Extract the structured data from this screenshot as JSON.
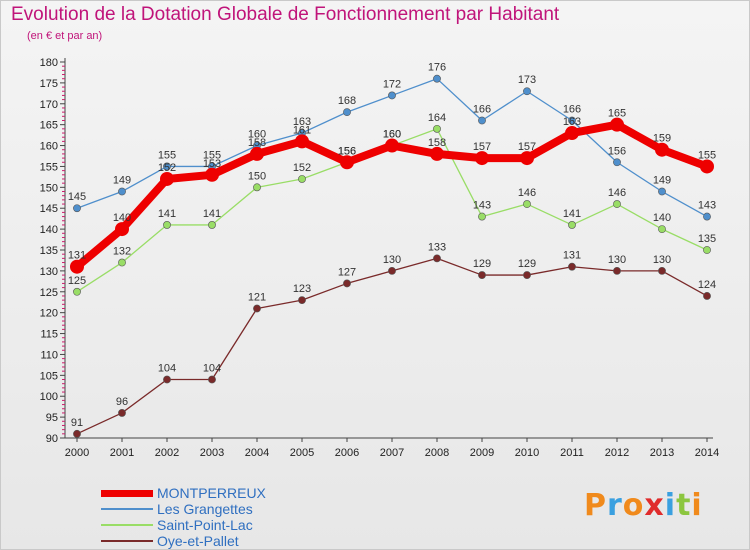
{
  "header": {
    "title": "Evolution de la Dotation Globale de Fonctionnement par Habitant",
    "subtitle": "(en € et par an)"
  },
  "brand": {
    "text": "Proxiti",
    "letters": [
      {
        "ch": "P",
        "color": "#f08a1c"
      },
      {
        "ch": "r",
        "color": "#3aa0e0"
      },
      {
        "ch": "o",
        "color": "#f08a1c"
      },
      {
        "ch": "x",
        "color": "#e02c2c"
      },
      {
        "ch": "i",
        "color": "#3aa0e0"
      },
      {
        "ch": "t",
        "color": "#8cc63f"
      },
      {
        "ch": "i",
        "color": "#f08a1c"
      }
    ]
  },
  "chart_data": {
    "type": "line",
    "title": "Evolution de la Dotation Globale de Fonctionnement par Habitant",
    "subtitle": "(en € et par an)",
    "xlabel": "",
    "ylabel": "",
    "x": [
      2000,
      2001,
      2002,
      2003,
      2004,
      2005,
      2006,
      2007,
      2008,
      2009,
      2010,
      2011,
      2012,
      2013,
      2014
    ],
    "ylim": [
      90,
      180
    ],
    "ytick_step": 5,
    "grid": false,
    "legend_position": "bottom-left",
    "series": [
      {
        "name": "MONTPERREUX",
        "color": "#ee0000",
        "emphasis": true,
        "values": [
          131,
          140,
          152,
          153,
          158,
          161,
          156,
          160,
          158,
          157,
          157,
          163,
          165,
          159,
          155
        ]
      },
      {
        "name": "Les Grangettes",
        "color": "#4f8fcc",
        "emphasis": false,
        "values": [
          145,
          149,
          155,
          155,
          160,
          163,
          168,
          172,
          176,
          166,
          173,
          166,
          156,
          149,
          143
        ]
      },
      {
        "name": "Saint-Point-Lac",
        "color": "#99dd66",
        "emphasis": false,
        "values": [
          125,
          132,
          141,
          141,
          150,
          152,
          156,
          160,
          164,
          143,
          146,
          141,
          146,
          140,
          135
        ]
      },
      {
        "name": "Oye-et-Pallet",
        "color": "#7a2a2a",
        "emphasis": false,
        "values": [
          91,
          96,
          104,
          104,
          121,
          123,
          127,
          130,
          133,
          129,
          129,
          131,
          130,
          130,
          124
        ]
      }
    ]
  }
}
